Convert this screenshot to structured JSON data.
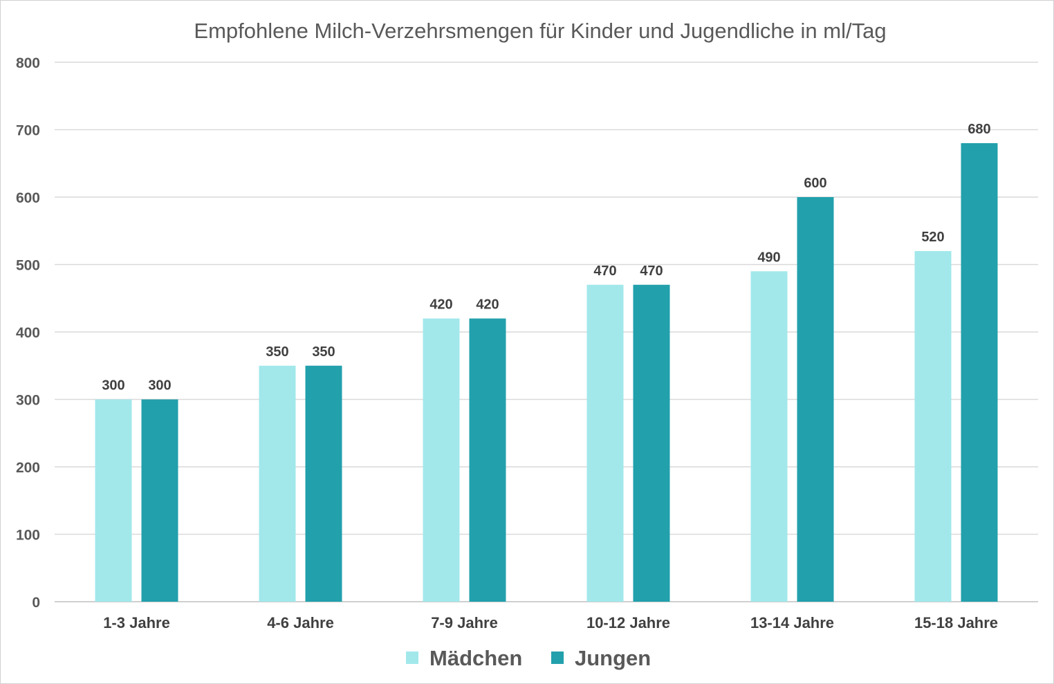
{
  "chart_data": {
    "type": "bar",
    "title": "Empfohlene Milch-Verzehrsmengen für Kinder und Jugendliche in ml/Tag",
    "xlabel": "",
    "ylabel": "",
    "ylim": [
      0,
      800
    ],
    "yticks": [
      0,
      100,
      200,
      300,
      400,
      500,
      600,
      700,
      800
    ],
    "grid": true,
    "legend_position": "bottom",
    "categories": [
      "1-3 Jahre",
      "4-6 Jahre",
      "7-9 Jahre",
      "10-12 Jahre",
      "13-14 Jahre",
      "15-18 Jahre"
    ],
    "series": [
      {
        "name": "Mädchen",
        "color": "#a2e8eb",
        "values": [
          300,
          350,
          420,
          470,
          490,
          520
        ]
      },
      {
        "name": "Jungen",
        "color": "#22a0ac",
        "values": [
          300,
          350,
          420,
          470,
          600,
          680
        ]
      }
    ],
    "data_labels": true
  }
}
